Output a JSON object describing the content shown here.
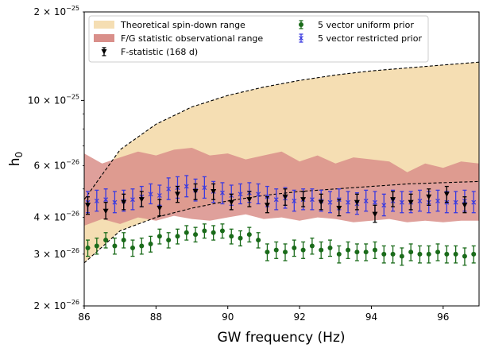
{
  "chart_data": {
    "type": "scatter",
    "xlabel": "GW frequency (Hz)",
    "ylabel": "h",
    "ylabel_subscript": "0",
    "y_scale": "log",
    "xlim": [
      86,
      97
    ],
    "ylim": [
      2e-26,
      2e-25
    ],
    "x_ticks": [
      86,
      88,
      90,
      92,
      94,
      96
    ],
    "y_ticks": [
      {
        "value": 2e-26,
        "mantissa": "2",
        "exponent": "−26"
      },
      {
        "value": 3e-26,
        "mantissa": "3",
        "exponent": "−26"
      },
      {
        "value": 4e-26,
        "mantissa": "4",
        "exponent": "−26"
      },
      {
        "value": 6e-26,
        "mantissa": "6",
        "exponent": "−26"
      },
      {
        "value": 1e-25,
        "mantissa": "10",
        "exponent": "−25"
      },
      {
        "value": 2e-25,
        "mantissa": "2",
        "exponent": "−25"
      }
    ],
    "times_sign": "×",
    "legend": {
      "placement": "top",
      "entries": [
        {
          "label": "Theoretical spin-down range",
          "kind": "patch",
          "color": "#f5deb3"
        },
        {
          "label": "F/G statistic observational range",
          "kind": "patch",
          "color": "#d98f8a"
        },
        {
          "label": "F-statistic (168 d)",
          "kind": "marker",
          "marker": "triangle-down",
          "color": "#000000"
        },
        {
          "label": "5 vector uniform prior",
          "kind": "marker",
          "marker": "circle",
          "color": "#1a6b1a"
        },
        {
          "label": "5 vector restricted prior",
          "kind": "marker",
          "marker": "x",
          "color": "#3a3ae0"
        }
      ]
    },
    "spin_down_range": {
      "name": "Theoretical spin-down range",
      "color": "#f5deb3",
      "x": [
        86,
        87,
        88,
        89,
        90,
        91,
        92,
        93,
        94,
        95,
        96,
        97
      ],
      "upper": [
        4.6e-26,
        6.8e-26,
        8.3e-26,
        9.5e-26,
        1.04e-25,
        1.11e-25,
        1.17e-25,
        1.22e-25,
        1.26e-25,
        1.29e-25,
        1.32e-25,
        1.35e-25
      ],
      "lower": [
        2.8e-26,
        3.6e-26,
        4e-26,
        4.3e-26,
        4.55e-26,
        4.75e-26,
        4.9e-26,
        5e-26,
        5.1e-26,
        5.2e-26,
        5.25e-26,
        5.3e-26
      ]
    },
    "observational_range": {
      "name": "F/G statistic observational range",
      "color": "#d98f8a",
      "x": [
        86,
        86.5,
        87,
        87.5,
        88,
        88.5,
        89,
        89.5,
        90,
        90.5,
        91,
        91.5,
        92,
        92.5,
        93,
        93.5,
        94,
        94.5,
        95,
        95.5,
        96,
        96.5,
        97
      ],
      "upper": [
        6.6e-26,
        6.1e-26,
        6.4e-26,
        6.7e-26,
        6.5e-26,
        6.8e-26,
        6.9e-26,
        6.5e-26,
        6.6e-26,
        6.3e-26,
        6.5e-26,
        6.7e-26,
        6.2e-26,
        6.5e-26,
        6.1e-26,
        6.4e-26,
        6.3e-26,
        6.2e-26,
        5.7e-26,
        6.1e-26,
        5.9e-26,
        6.2e-26,
        6.1e-26
      ],
      "lower": [
        3.75e-26,
        3.95e-26,
        3.8e-26,
        4e-26,
        3.9e-26,
        4.05e-26,
        3.95e-26,
        3.9e-26,
        4e-26,
        4.1e-26,
        3.95e-26,
        4e-26,
        3.9e-26,
        4e-26,
        3.95e-26,
        3.85e-26,
        3.9e-26,
        3.95e-26,
        3.85e-26,
        3.9e-26,
        3.85e-26,
        3.9e-26,
        3.9e-26
      ]
    },
    "dashed_curves": [
      {
        "x": [
          86,
          87,
          88,
          89,
          90,
          91,
          92,
          93,
          94,
          95,
          96,
          97
        ],
        "y": [
          4.6e-26,
          6.8e-26,
          8.3e-26,
          9.5e-26,
          1.04e-25,
          1.11e-25,
          1.17e-25,
          1.22e-25,
          1.26e-25,
          1.29e-25,
          1.32e-25,
          1.35e-25
        ]
      },
      {
        "x": [
          86,
          87,
          88,
          89,
          90,
          91,
          92,
          93,
          94,
          95,
          96,
          97
        ],
        "y": [
          2.8e-26,
          3.6e-26,
          4e-26,
          4.3e-26,
          4.55e-26,
          4.75e-26,
          4.9e-26,
          5e-26,
          5.1e-26,
          5.2e-26,
          5.25e-26,
          5.3e-26
        ]
      }
    ],
    "f_statistic": {
      "name": "F-statistic (168 d)",
      "color": "#000000",
      "x": [
        86.1,
        86.6,
        87.1,
        87.6,
        88.1,
        88.6,
        89.1,
        89.6,
        90.1,
        90.6,
        91.1,
        91.6,
        92.1,
        92.6,
        93.1,
        93.6,
        94.1,
        94.6,
        95.1,
        95.6,
        96.1,
        96.6
      ],
      "y": [
        4.4e-26,
        4.2e-26,
        4.5e-26,
        4.6e-26,
        4.3e-26,
        4.8e-26,
        4.9e-26,
        4.9e-26,
        4.5e-26,
        4.6e-26,
        4.4e-26,
        4.7e-26,
        4.6e-26,
        4.5e-26,
        4.3e-26,
        4.5e-26,
        4.1e-26,
        4.6e-26,
        4.5e-26,
        4.7e-26,
        4.8e-26,
        4.4e-26
      ],
      "err_low": [
        4.1e-26,
        3.95e-26,
        4.25e-26,
        4.35e-26,
        4.05e-26,
        4.5e-26,
        4.6e-26,
        4.6e-26,
        4.25e-26,
        4.35e-26,
        4.15e-26,
        4.4e-26,
        4.35e-26,
        4.25e-26,
        4.05e-26,
        4.25e-26,
        3.85e-26,
        4.35e-26,
        4.25e-26,
        4.4e-26,
        4.5e-26,
        4.15e-26
      ],
      "err_high": [
        4.7e-26,
        4.5e-26,
        4.8e-26,
        4.9e-26,
        4.6e-26,
        5.1e-26,
        5.2e-26,
        5.2e-26,
        4.8e-26,
        4.9e-26,
        4.7e-26,
        5e-26,
        4.9e-26,
        4.8e-26,
        4.6e-26,
        4.8e-26,
        4.4e-26,
        4.9e-26,
        4.8e-26,
        5e-26,
        5.1e-26,
        4.7e-26
      ]
    },
    "uniform_prior": {
      "name": "5 vector uniform prior",
      "color": "#1a6b1a",
      "x": [
        86.1,
        86.35,
        86.6,
        86.85,
        87.1,
        87.35,
        87.6,
        87.85,
        88.1,
        88.35,
        88.6,
        88.85,
        89.1,
        89.35,
        89.6,
        89.85,
        90.1,
        90.35,
        90.6,
        90.85,
        91.1,
        91.35,
        91.6,
        91.85,
        92.1,
        92.35,
        92.6,
        92.85,
        93.1,
        93.35,
        93.6,
        93.85,
        94.1,
        94.35,
        94.6,
        94.85,
        95.1,
        95.35,
        95.6,
        95.85,
        96.1,
        96.35,
        96.6,
        96.85
      ],
      "y": [
        3.15e-26,
        3.2e-26,
        3.35e-26,
        3.2e-26,
        3.35e-26,
        3.15e-26,
        3.2e-26,
        3.25e-26,
        3.45e-26,
        3.35e-26,
        3.45e-26,
        3.55e-26,
        3.5e-26,
        3.6e-26,
        3.55e-26,
        3.6e-26,
        3.45e-26,
        3.4e-26,
        3.5e-26,
        3.35e-26,
        3.05e-26,
        3.1e-26,
        3.05e-26,
        3.15e-26,
        3.1e-26,
        3.2e-26,
        3.1e-26,
        3.15e-26,
        3e-26,
        3.1e-26,
        3.05e-26,
        3.05e-26,
        3.1e-26,
        3e-26,
        3e-26,
        2.95e-26,
        3.05e-26,
        3e-26,
        3e-26,
        3.05e-26,
        3e-26,
        3e-26,
        2.95e-26,
        3e-26
      ],
      "err_low": [
        2.95e-26,
        3e-26,
        3.15e-26,
        3e-26,
        3.15e-26,
        2.95e-26,
        3e-26,
        3.05e-26,
        3.25e-26,
        3.15e-26,
        3.25e-26,
        3.35e-26,
        3.3e-26,
        3.4e-26,
        3.35e-26,
        3.4e-26,
        3.25e-26,
        3.2e-26,
        3.3e-26,
        3.15e-26,
        2.85e-26,
        2.9e-26,
        2.85e-26,
        2.95e-26,
        2.9e-26,
        3e-26,
        2.9e-26,
        2.95e-26,
        2.8e-26,
        2.9e-26,
        2.85e-26,
        2.85e-26,
        2.9e-26,
        2.8e-26,
        2.8e-26,
        2.75e-26,
        2.85e-26,
        2.8e-26,
        2.8e-26,
        2.85e-26,
        2.8e-26,
        2.8e-26,
        2.75e-26,
        2.8e-26
      ],
      "err_high": [
        3.35e-26,
        3.4e-26,
        3.55e-26,
        3.4e-26,
        3.55e-26,
        3.35e-26,
        3.4e-26,
        3.45e-26,
        3.65e-26,
        3.55e-26,
        3.65e-26,
        3.75e-26,
        3.7e-26,
        3.8e-26,
        3.75e-26,
        3.8e-26,
        3.65e-26,
        3.6e-26,
        3.7e-26,
        3.55e-26,
        3.25e-26,
        3.3e-26,
        3.25e-26,
        3.35e-26,
        3.3e-26,
        3.4e-26,
        3.3e-26,
        3.35e-26,
        3.2e-26,
        3.3e-26,
        3.25e-26,
        3.25e-26,
        3.3e-26,
        3.2e-26,
        3.2e-26,
        3.15e-26,
        3.25e-26,
        3.2e-26,
        3.2e-26,
        3.25e-26,
        3.2e-26,
        3.2e-26,
        3.15e-26,
        3.2e-26
      ]
    },
    "restricted_prior": {
      "name": "5 vector restricted prior",
      "color": "#3a3ae0",
      "x": [
        86.1,
        86.35,
        86.6,
        86.85,
        87.1,
        87.35,
        87.6,
        87.85,
        88.1,
        88.35,
        88.6,
        88.85,
        89.1,
        89.35,
        89.6,
        89.85,
        90.1,
        90.35,
        90.6,
        90.85,
        91.1,
        91.35,
        91.6,
        91.85,
        92.1,
        92.35,
        92.6,
        92.85,
        93.1,
        93.35,
        93.6,
        93.85,
        94.1,
        94.35,
        94.6,
        94.85,
        95.1,
        95.35,
        95.6,
        95.85,
        96.1,
        96.35,
        96.6,
        96.85
      ],
      "y": [
        4.5e-26,
        4.55e-26,
        4.6e-26,
        4.5e-26,
        4.55e-26,
        4.6e-26,
        4.7e-26,
        4.8e-26,
        4.75e-26,
        5e-26,
        5.05e-26,
        5.1e-26,
        4.95e-26,
        5.05e-26,
        4.9e-26,
        4.85e-26,
        4.75e-26,
        4.8e-26,
        4.85e-26,
        4.8e-26,
        4.7e-26,
        4.6e-26,
        4.65e-26,
        4.55e-26,
        4.6e-26,
        4.6e-26,
        4.55e-26,
        4.5e-26,
        4.6e-26,
        4.5e-26,
        4.45e-26,
        4.55e-26,
        4.5e-26,
        4.4e-26,
        4.55e-26,
        4.5e-26,
        4.5e-26,
        4.55e-26,
        4.5e-26,
        4.55e-26,
        4.5e-26,
        4.5e-26,
        4.55e-26,
        4.5e-26
      ],
      "err_low": [
        4.15e-26,
        4.2e-26,
        4.25e-26,
        4.15e-26,
        4.2e-26,
        4.25e-26,
        4.35e-26,
        4.45e-26,
        4.4e-26,
        4.6e-26,
        4.65e-26,
        4.7e-26,
        4.55e-26,
        4.65e-26,
        4.5e-26,
        4.45e-26,
        4.4e-26,
        4.45e-26,
        4.5e-26,
        4.45e-26,
        4.35e-26,
        4.25e-26,
        4.3e-26,
        4.2e-26,
        4.25e-26,
        4.25e-26,
        4.2e-26,
        4.15e-26,
        4.25e-26,
        4.15e-26,
        4.1e-26,
        4.2e-26,
        4.15e-26,
        4.05e-26,
        4.2e-26,
        4.15e-26,
        4.15e-26,
        4.2e-26,
        4.15e-26,
        4.2e-26,
        4.15e-26,
        4.15e-26,
        4.2e-26,
        4.15e-26
      ],
      "err_high": [
        4.9e-26,
        4.95e-26,
        5e-26,
        4.9e-26,
        4.95e-26,
        5e-26,
        5.1e-26,
        5.2e-26,
        5.15e-26,
        5.45e-26,
        5.5e-26,
        5.55e-26,
        5.4e-26,
        5.5e-26,
        5.3e-26,
        5.25e-26,
        5.15e-26,
        5.2e-26,
        5.25e-26,
        5.2e-26,
        5.1e-26,
        5e-26,
        5.05e-26,
        4.95e-26,
        5e-26,
        5e-26,
        4.95e-26,
        4.9e-26,
        5e-26,
        4.9e-26,
        4.85e-26,
        4.95e-26,
        4.9e-26,
        4.8e-26,
        4.95e-26,
        4.9e-26,
        4.9e-26,
        4.95e-26,
        4.9e-26,
        4.95e-26,
        4.9e-26,
        4.9e-26,
        4.95e-26,
        4.9e-26
      ]
    }
  }
}
